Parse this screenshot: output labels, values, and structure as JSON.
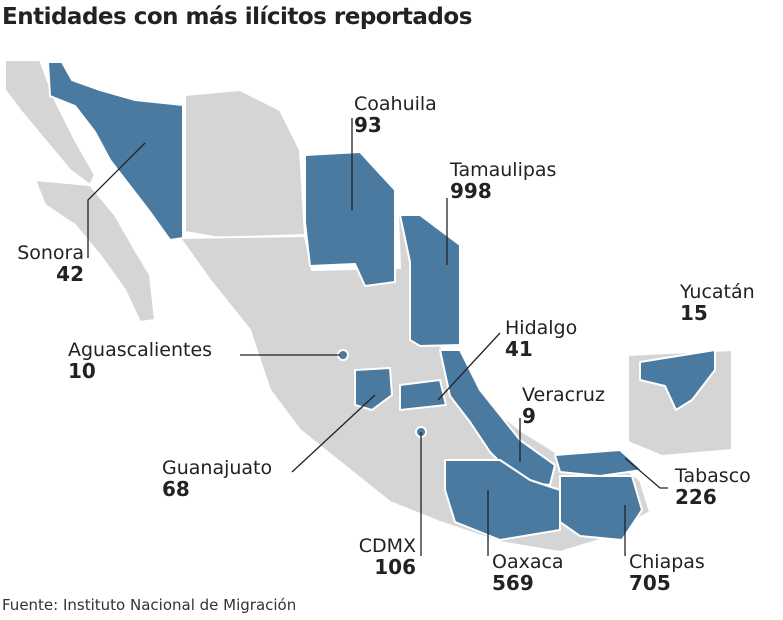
{
  "title": "Entidades con más ilícitos reportados",
  "source": "Fuente: Instituto Nacional de Migración",
  "colors": {
    "highlight": "#4b7aa1",
    "base": "#d5d5d5",
    "border": "#ffffff"
  },
  "states": [
    {
      "name": "Sonora",
      "value": "42"
    },
    {
      "name": "Coahuila",
      "value": "93"
    },
    {
      "name": "Tamaulipas",
      "value": "998"
    },
    {
      "name": "Aguascalientes",
      "value": "10"
    },
    {
      "name": "Hidalgo",
      "value": "41"
    },
    {
      "name": "Yucatán",
      "value": "15"
    },
    {
      "name": "Veracruz",
      "value": "9"
    },
    {
      "name": "Guanajuato",
      "value": "68"
    },
    {
      "name": "Tabasco",
      "value": "226"
    },
    {
      "name": "CDMX",
      "value": "106"
    },
    {
      "name": "Oaxaca",
      "value": "569"
    },
    {
      "name": "Chiapas",
      "value": "705"
    }
  ]
}
